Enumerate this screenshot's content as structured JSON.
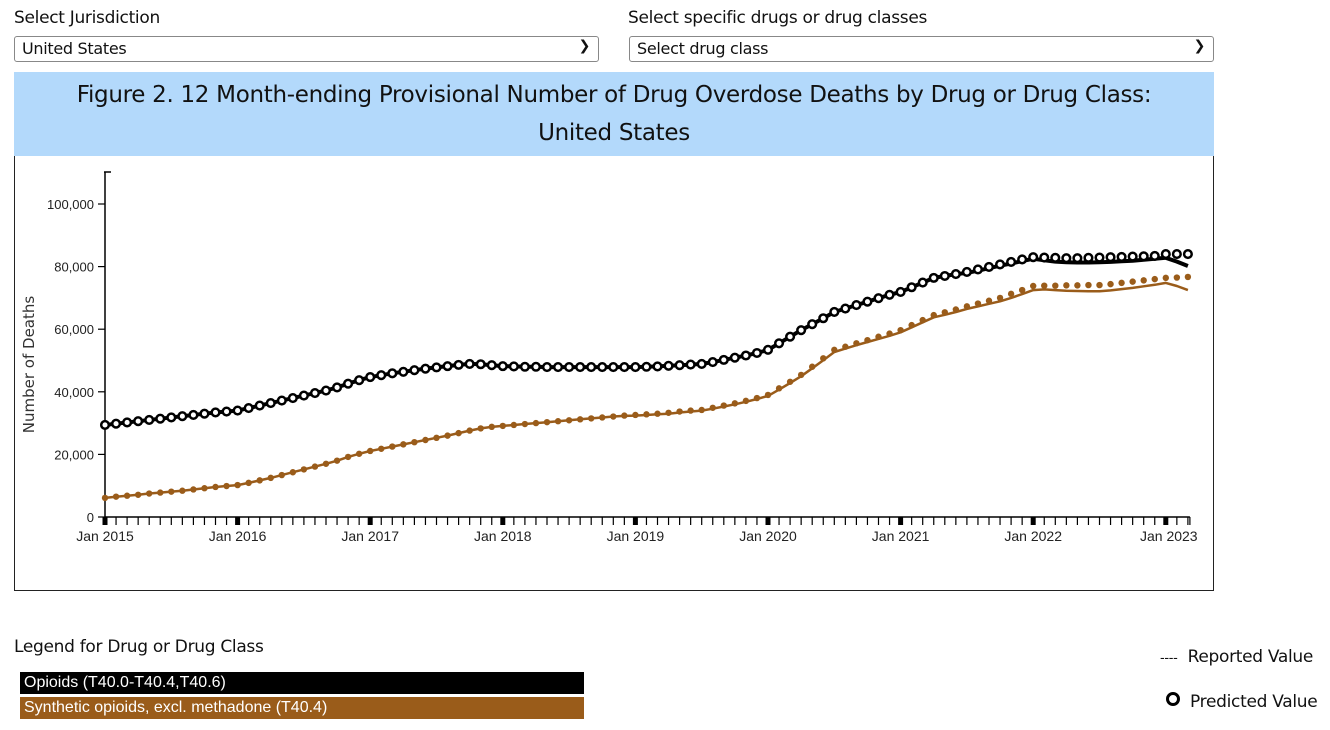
{
  "controls": {
    "jurisdiction_label": "Select Jurisdiction",
    "jurisdiction_value": "United States",
    "drug_label": "Select specific drugs or drug classes",
    "drug_value": "Select drug class"
  },
  "title_line1": "Figure 2. 12 Month-ending Provisional Number of Drug Overdose Deaths by Drug or Drug Class:",
  "title_line2": "United States",
  "legend": {
    "title": "Legend for Drug or Drug Class",
    "items": [
      {
        "label": "Opioids (T40.0-T40.4,T40.6)",
        "color": "#000000"
      },
      {
        "label": "Synthetic opioids, excl. methadone (T40.4)",
        "color": "#9a5c1a"
      }
    ],
    "reported_symbol": "----",
    "reported_label": "Reported Value",
    "predicted_label": "Predicted Value"
  },
  "chart_data": {
    "type": "line",
    "ylabel": "Number of Deaths",
    "xlabel": "",
    "ylim": [
      0,
      110000
    ],
    "yticks": [
      0,
      20000,
      40000,
      60000,
      80000,
      100000
    ],
    "ytick_labels": [
      "0",
      "20,000",
      "40,000",
      "60,000",
      "80,000",
      "100,000"
    ],
    "xtick_labels": [
      "Jan 2015",
      "Jan 2016",
      "Jan 2017",
      "Jan 2018",
      "Jan 2019",
      "Jan 2020",
      "Jan 2021",
      "Jan 2022",
      "Jan 2023"
    ],
    "x_start": "2015-01",
    "x_end": "2023-03",
    "x_frequency": "monthly",
    "grid": false,
    "series": [
      {
        "name": "Opioids (T40.0-T40.4,T40.6)",
        "color": "#000000",
        "marker": "open-circle",
        "reported": [
          29400,
          29800,
          30200,
          30600,
          31000,
          31400,
          31800,
          32200,
          32600,
          33000,
          33400,
          33700,
          34000,
          34800,
          35600,
          36400,
          37200,
          38000,
          38800,
          39600,
          40400,
          41400,
          42600,
          43700,
          44700,
          45300,
          45900,
          46400,
          46900,
          47400,
          47800,
          48200,
          48600,
          48900,
          48800,
          48500,
          48200,
          48100,
          48000,
          48000,
          47900,
          47900,
          47900,
          47900,
          47900,
          47900,
          47900,
          47900,
          47900,
          48000,
          48100,
          48300,
          48500,
          48700,
          48900,
          49500,
          50200,
          50900,
          51600,
          52400,
          53400,
          55500,
          57600,
          59700,
          61600,
          63500,
          65500,
          66600,
          67700,
          68800,
          69900,
          71000,
          71900,
          73400,
          74900,
          76400,
          77000,
          77600,
          78000,
          78700,
          79500,
          80300,
          81000,
          81800,
          82500,
          82000,
          81600,
          81400,
          81300,
          81300,
          81400,
          81500,
          81700,
          81900,
          82200,
          82500,
          82800,
          81600,
          80200
        ],
        "predicted": [
          29400,
          29800,
          30200,
          30600,
          31000,
          31400,
          31800,
          32200,
          32600,
          33000,
          33400,
          33700,
          34000,
          34800,
          35600,
          36400,
          37200,
          38000,
          38800,
          39600,
          40400,
          41400,
          42600,
          43700,
          44700,
          45300,
          45900,
          46400,
          46900,
          47400,
          47800,
          48200,
          48600,
          48900,
          48800,
          48500,
          48200,
          48100,
          48000,
          48000,
          47900,
          47900,
          47900,
          47900,
          47900,
          47900,
          47900,
          47900,
          47900,
          48000,
          48100,
          48300,
          48500,
          48700,
          48900,
          49500,
          50200,
          50900,
          51600,
          52400,
          53400,
          55500,
          57600,
          59700,
          61600,
          63500,
          65500,
          66600,
          67700,
          68800,
          69900,
          71000,
          71900,
          73400,
          74900,
          76400,
          77000,
          77600,
          78300,
          79100,
          79900,
          80700,
          81500,
          82300,
          83000,
          82900,
          82800,
          82700,
          82700,
          82800,
          82900,
          83000,
          83100,
          83200,
          83300,
          83400,
          84000,
          84000,
          84000
        ]
      },
      {
        "name": "Synthetic opioids, excl. methadone (T40.4)",
        "color": "#9a5c1a",
        "marker": "filled-dot",
        "reported": [
          6100,
          6500,
          6800,
          7100,
          7500,
          7800,
          8100,
          8400,
          8800,
          9200,
          9600,
          9900,
          10200,
          10900,
          11700,
          12500,
          13400,
          14300,
          15200,
          16100,
          17000,
          18000,
          19200,
          20200,
          21100,
          21800,
          22500,
          23200,
          23900,
          24600,
          25300,
          26000,
          26800,
          27600,
          28300,
          28800,
          29100,
          29400,
          29700,
          30000,
          30300,
          30600,
          30900,
          31200,
          31500,
          31800,
          32100,
          32300,
          32400,
          32600,
          32800,
          33000,
          33400,
          33700,
          34000,
          34600,
          35300,
          36000,
          36800,
          37700,
          38700,
          40700,
          42800,
          45000,
          47500,
          50100,
          52700,
          53800,
          54900,
          55900,
          56900,
          57900,
          59000,
          60600,
          62200,
          63800,
          64600,
          65500,
          66500,
          67300,
          68100,
          68900,
          70000,
          71200,
          72500,
          72700,
          72500,
          72300,
          72200,
          72100,
          72100,
          72400,
          72800,
          73200,
          73700,
          74200,
          74800,
          73800,
          72500
        ],
        "predicted": [
          6100,
          6500,
          6800,
          7100,
          7500,
          7800,
          8100,
          8400,
          8800,
          9200,
          9600,
          9900,
          10200,
          10900,
          11700,
          12500,
          13400,
          14300,
          15200,
          16100,
          17000,
          18000,
          19200,
          20200,
          21100,
          21800,
          22500,
          23200,
          23900,
          24600,
          25300,
          26000,
          26800,
          27600,
          28300,
          28800,
          29100,
          29400,
          29700,
          30000,
          30300,
          30600,
          30900,
          31200,
          31500,
          31800,
          32100,
          32400,
          32600,
          32800,
          33000,
          33300,
          33700,
          34000,
          34200,
          34900,
          35600,
          36300,
          37100,
          38000,
          39000,
          41100,
          43200,
          45400,
          48000,
          50700,
          53400,
          54400,
          55500,
          56500,
          57600,
          58600,
          59700,
          61300,
          62900,
          64500,
          65400,
          66300,
          67300,
          68200,
          69100,
          70000,
          71300,
          72500,
          73800,
          73900,
          73900,
          74000,
          74000,
          74100,
          74100,
          74400,
          74800,
          75200,
          75600,
          76000,
          76400,
          76500,
          76700
        ]
      }
    ]
  }
}
